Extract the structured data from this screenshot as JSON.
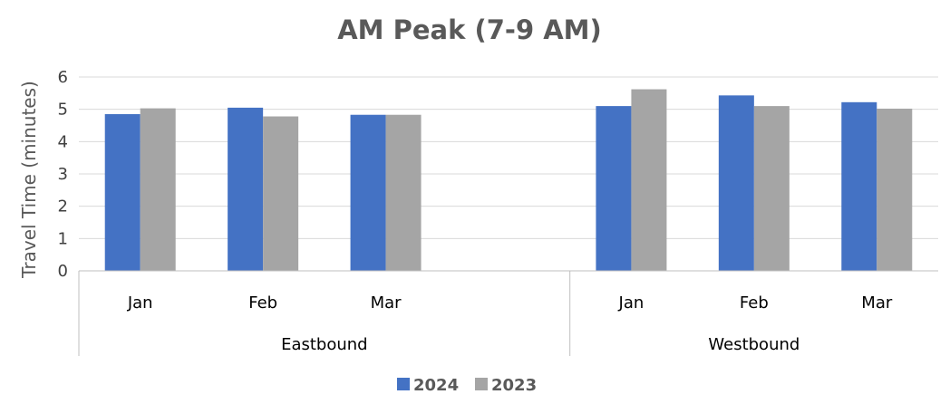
{
  "chart_data": {
    "type": "bar",
    "title": "AM Peak (7-9 AM)",
    "ylabel": "Travel Time (minutes)",
    "xlabel": "",
    "ylim": [
      0,
      6
    ],
    "yticks": [
      0,
      1,
      2,
      3,
      4,
      5,
      6
    ],
    "grid": true,
    "legend_position": "bottom",
    "groups": [
      {
        "label": "Eastbound",
        "categories": [
          "Jan",
          "Feb",
          "Mar",
          ""
        ]
      },
      {
        "label": "Westbound",
        "categories": [
          "Jan",
          "Feb",
          "Mar"
        ]
      }
    ],
    "categories": [
      "Eastbound Jan",
      "Eastbound Feb",
      "Eastbound Mar",
      "Eastbound (blank)",
      "Westbound Jan",
      "Westbound Feb",
      "Westbound Mar"
    ],
    "series": [
      {
        "name": "2024",
        "color": "#4472C4",
        "values": [
          4.85,
          5.05,
          4.83,
          null,
          5.1,
          5.43,
          5.22
        ]
      },
      {
        "name": "2023",
        "color": "#A5A5A5",
        "values": [
          5.03,
          4.78,
          4.83,
          null,
          5.62,
          5.1,
          5.02
        ]
      }
    ]
  }
}
